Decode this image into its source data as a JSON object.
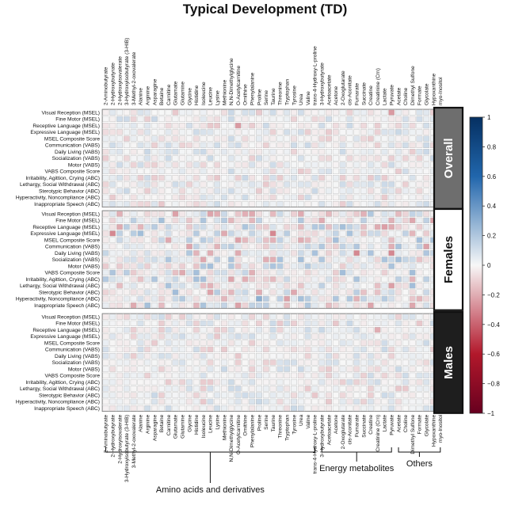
{
  "title": "Typical Development (TD)",
  "chart_data": {
    "type": "heatmap",
    "title": "Typical Development (TD)",
    "x_labels": [
      "2-Aminobutyrate",
      "2-Hydroxybutyrate",
      "2-Hydroxyisovalerate",
      "3-Hydroxyisobutyrate (3-HIB)",
      "3-Methyl-2-oxovalerate",
      "Alanine",
      "Arginine",
      "Asparagine",
      "Betaine",
      "Carnitine",
      "Glutamate",
      "Glutamine",
      "Glycine",
      "Histidine",
      "Isoleucine",
      "Leucine",
      "Lysine",
      "Methionine",
      "N,N-Dimethylglycine",
      "O-Acetylcarnitine",
      "Ornithine",
      "Phenylalanine",
      "Proline",
      "Serine",
      "Taurine",
      "Threonine",
      "Tryptophan",
      "Tyrosine",
      "Urea",
      "Valine",
      "trans-4-Hydroxy-L-proline",
      "3-Hydroxybutyrate",
      "Acetoacetate",
      "Acetone",
      "2-Oxoglutarate",
      "cis-Aconitate",
      "Fumarate",
      "Succinate",
      "Creatine",
      "Creatinine (Crn)",
      "Lactate",
      "Pyruvate",
      "Acetate",
      "Choline",
      "Dimethyl Sulfone",
      "Formate",
      "Glycolate",
      "Hypoxanthine",
      "myo-Inositol"
    ],
    "highlighted_x": [
      "O-Acetylcarnitine",
      "3-Hydroxybutyrate",
      "Pyruvate"
    ],
    "highlight_color": "#1aa04a",
    "y_labels": [
      "Visual Reception (MSEL)",
      "Fine Motor (MSEL)",
      "Receptive Language (MSEL)",
      "Expressive Language (MSEL)",
      "MSEL Composite Score",
      "Communication (VABS)",
      "Daily Living (VABS)",
      "Socialization (VABS)",
      "Motor (VABS)",
      "VABS Composite Score",
      "Irritability, Agittion, Crying (ABC)",
      "Lethargy, Social Withdrawal (ABC)",
      "Sterotypic Behavior (ABC)",
      "Hyperactivity, Noncompliance (ABC)",
      "Inappropriate Speech (ABC)"
    ],
    "panels": [
      {
        "name": "Overall",
        "label_color": "#ffffff",
        "bg_color": "#6e6e6e"
      },
      {
        "name": "Females",
        "label_color": "#111111",
        "bg_color": "#ffffff"
      },
      {
        "name": "Males",
        "label_color": "#ffffff",
        "bg_color": "#1e1e1e"
      }
    ],
    "groups": [
      {
        "name": "Amino acids and derivatives",
        "from": "2-Aminobutyrate",
        "to": "trans-4-Hydroxy-L-proline"
      },
      {
        "name": "Energy metabolites",
        "from": "3-Hydroxybutyrate",
        "to": "Pyruvate"
      },
      {
        "name": "Others",
        "from": "Acetate",
        "to": "myo-Inositol"
      }
    ],
    "colorbar": {
      "range": [
        -1,
        1
      ],
      "ticks": [
        1,
        0.8,
        0.6,
        0.4,
        0.2,
        0,
        -0.2,
        -0.4,
        -0.6,
        -0.8,
        -1
      ]
    },
    "notable_values": [
      {
        "panel": "Overall",
        "x": "O-Acetylcarnitine",
        "y": "Receptive Language (MSEL)",
        "value": -0.25
      },
      {
        "panel": "Overall",
        "x": "Pyruvate",
        "y": "Visual Reception (MSEL)",
        "value": -0.25
      },
      {
        "panel": "Females",
        "x": "Taurine",
        "y": "Expressive Language (MSEL)",
        "value": -0.3
      },
      {
        "panel": "Females",
        "x": "Pyruvate",
        "y": "Daily Living (VABS)",
        "value": -0.3
      },
      {
        "panel": "Females",
        "x": "Fumarate",
        "y": "Daily Living (VABS)",
        "value": -0.3
      },
      {
        "panel": "Females",
        "x": "2-Hydroxybutyrate",
        "y": "Expressive Language (MSEL)",
        "value": -0.3
      },
      {
        "panel": "Females",
        "x": "Proline",
        "y": "Hyperactivity, Noncompliance (ABC)",
        "value": 0.3
      },
      {
        "panel": "Males",
        "x": "Creatinine (Crn)",
        "y": "Receptive Language (MSEL)",
        "value": -0.2
      }
    ]
  }
}
